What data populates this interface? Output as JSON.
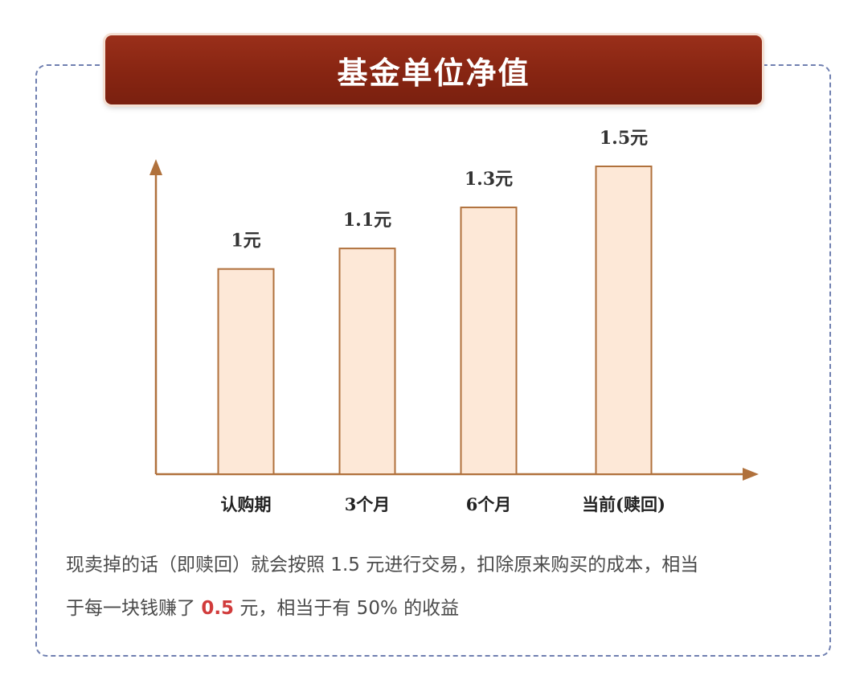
{
  "title": "基金单位净值",
  "colors": {
    "banner": "#872512",
    "bar_fill": "#fde8d7",
    "bar_stroke": "#b0713c",
    "axis": "#b0713c",
    "frame_border": "#6f7fb0",
    "highlight": "#d13b3b"
  },
  "chart_data": {
    "type": "bar",
    "categories": [
      "认购期",
      "3个月",
      "6个月",
      "当前(赎回)"
    ],
    "values": [
      1.0,
      1.1,
      1.3,
      1.5
    ],
    "value_labels": [
      "1元",
      "1.1元",
      "1.3元",
      "1.5元"
    ],
    "title": "基金单位净值",
    "xlabel": "",
    "ylabel": "",
    "grid": false
  },
  "note": {
    "line1": "现卖掉的话（即赎回）就会按照 1.5 元进行交易，扣除原来购买的成本，相当",
    "line2_prefix": "于每一块钱赚了 ",
    "line2_highlight": "0.5",
    "line2_suffix": " 元，相当于有 50% 的收益"
  }
}
